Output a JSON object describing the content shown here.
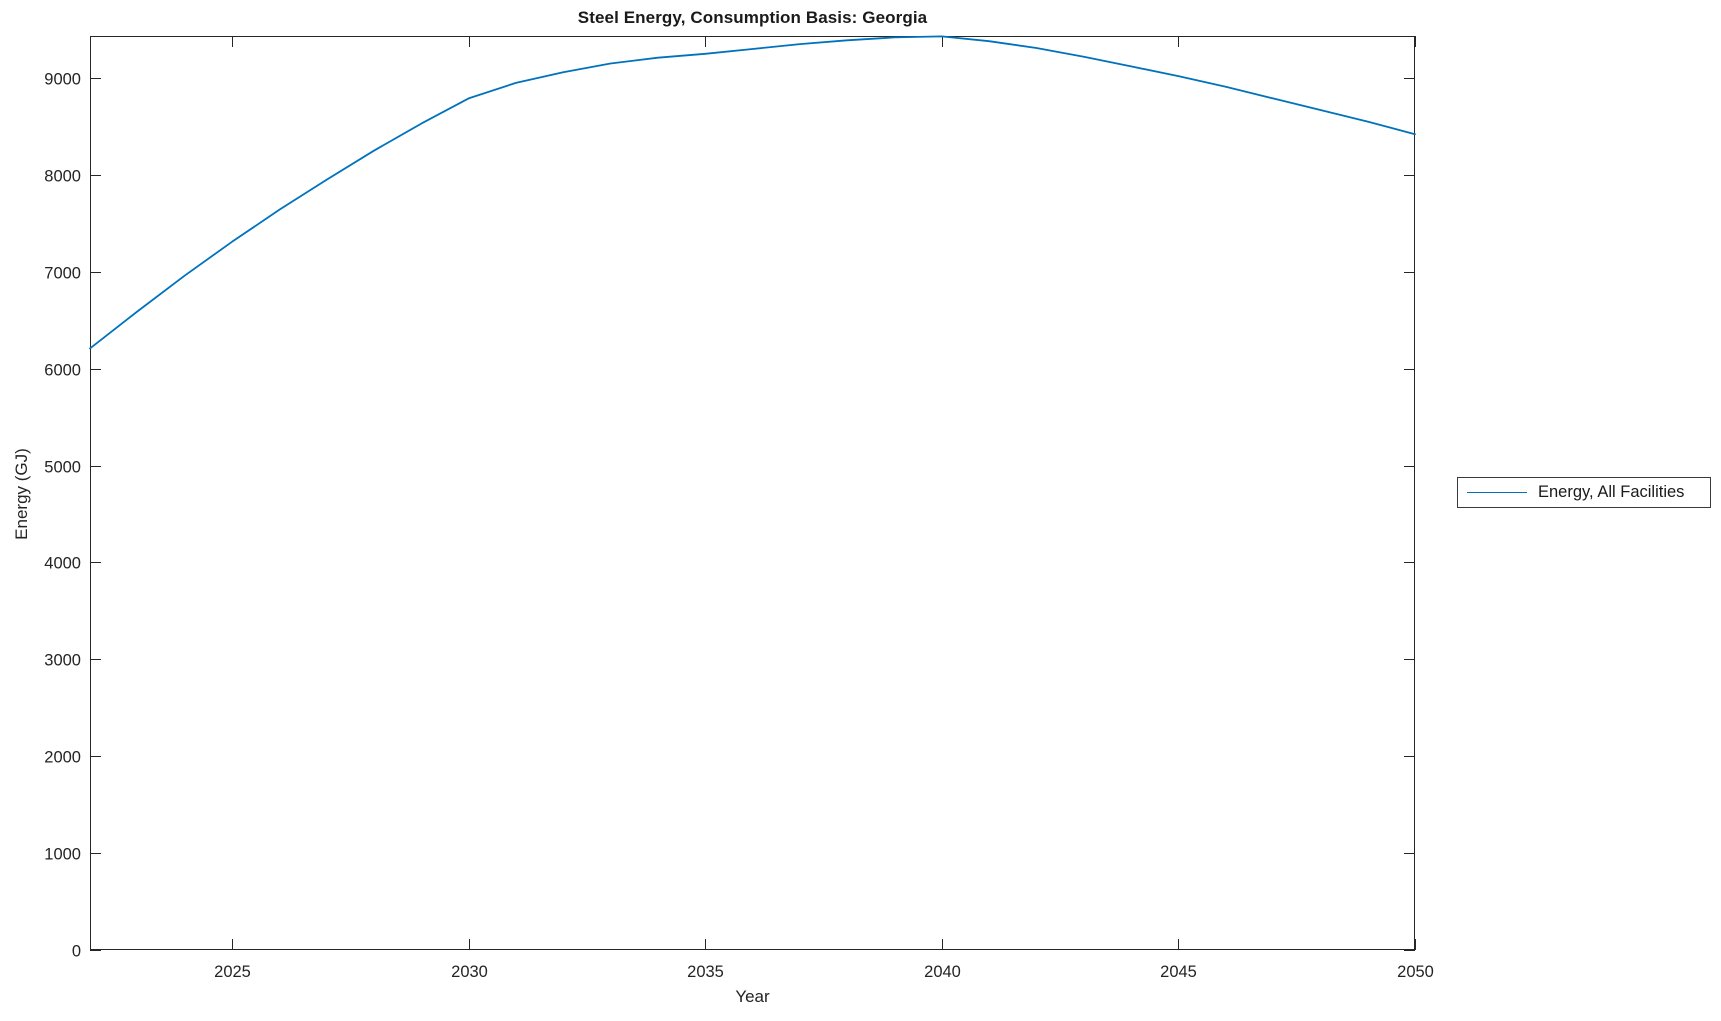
{
  "figure": {
    "background": "#ffffff"
  },
  "chart_data": {
    "type": "line",
    "title": "Steel Energy, Consumption Basis: Georgia",
    "xlabel": "Year",
    "ylabel": "Energy (GJ)",
    "xlim": [
      2022,
      2050
    ],
    "ylim": [
      0,
      9434
    ],
    "xticks": [
      2025,
      2030,
      2035,
      2040,
      2045,
      2050
    ],
    "yticks": [
      0,
      1000,
      2000,
      3000,
      4000,
      5000,
      6000,
      7000,
      8000,
      9000
    ],
    "grid": false,
    "box": true,
    "tick_direction": "in",
    "legend_position": "outside-right",
    "axis_color": "#262626",
    "text_color": "#242424",
    "x": [
      2022,
      2023,
      2024,
      2025,
      2026,
      2027,
      2028,
      2029,
      2030,
      2031,
      2032,
      2033,
      2034,
      2035,
      2036,
      2037,
      2038,
      2039,
      2040,
      2041,
      2042,
      2043,
      2044,
      2045,
      2046,
      2047,
      2048,
      2049,
      2050
    ],
    "series": [
      {
        "name": "Energy, All Facilities",
        "color": "#0072BD",
        "values": [
          6210,
          6590,
          6960,
          7310,
          7640,
          7950,
          8250,
          8530,
          8790,
          8950,
          9060,
          9150,
          9210,
          9250,
          9300,
          9350,
          9390,
          9420,
          9430,
          9380,
          9310,
          9220,
          9120,
          9020,
          8910,
          8790,
          8670,
          8550,
          8420
        ]
      }
    ]
  }
}
